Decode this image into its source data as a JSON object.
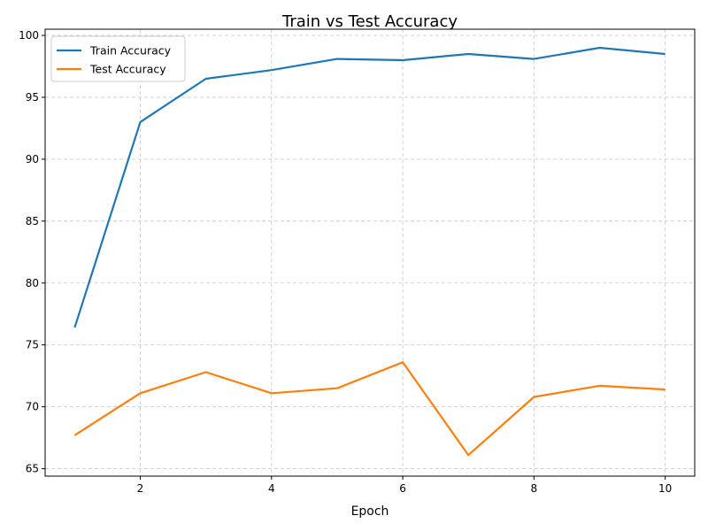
{
  "chart_data": {
    "type": "line",
    "title": "Train vs Test Accuracy",
    "xlabel": "Epoch",
    "ylabel": "",
    "x": [
      1,
      2,
      3,
      4,
      5,
      6,
      7,
      8,
      9,
      10
    ],
    "xlim": [
      0.55,
      10.45
    ],
    "ylim": [
      64.4,
      100.5
    ],
    "xticks": [
      2,
      4,
      6,
      8,
      10
    ],
    "yticks": [
      65,
      70,
      75,
      80,
      85,
      90,
      95,
      100
    ],
    "grid": true,
    "legend_position": "upper-left",
    "series": [
      {
        "name": "Train Accuracy",
        "color": "#1f77b4",
        "values": [
          76.4,
          93.0,
          96.5,
          97.2,
          98.1,
          98.0,
          98.5,
          98.1,
          99.0,
          98.5
        ]
      },
      {
        "name": "Test Accuracy",
        "color": "#ff7f0e",
        "values": [
          67.7,
          71.1,
          72.8,
          71.1,
          71.5,
          73.6,
          66.1,
          70.8,
          71.7,
          71.4
        ]
      }
    ]
  }
}
